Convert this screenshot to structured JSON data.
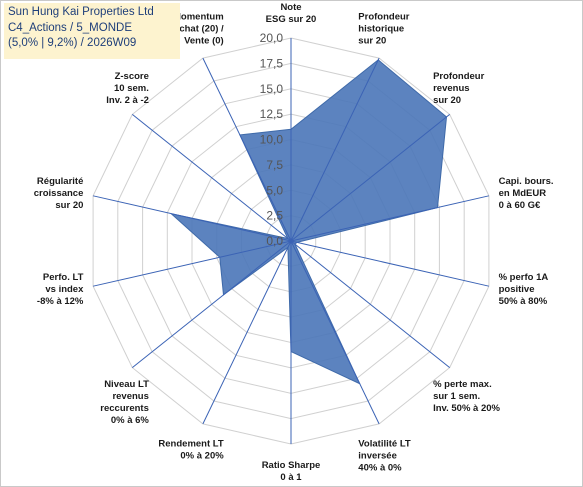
{
  "title_box": {
    "line1": "Sun Hung Kai Properties Ltd",
    "line2": "C4_Actions / 5_MONDE",
    "line3": "(5,0% | 9,2%) / 2026W09"
  },
  "colors": {
    "fill": "#4a76b8",
    "stroke": "#3f6aa9",
    "grid": "#d0d0d0",
    "axis": "#3b63b5"
  },
  "chart_data": {
    "type": "radar",
    "title": "",
    "rmin": 0,
    "rmax": 20,
    "ticks": [
      "0,0",
      "2,5",
      "5,0",
      "7,5",
      "10,0",
      "12,5",
      "15,0",
      "17,5",
      "20,0"
    ],
    "grid": true,
    "axes": [
      {
        "label": [
          "Note",
          "ESG sur 20"
        ],
        "value": 11.0
      },
      {
        "label": [
          "Profondeur",
          "historique",
          "sur 20"
        ],
        "value": 19.8
      },
      {
        "label": [
          "Profondeur",
          "revenus",
          "sur 20"
        ],
        "value": 19.6
      },
      {
        "label": [
          "Capi. bours.",
          "en MdEUR",
          "0 à 60 G€"
        ],
        "value": 14.8
      },
      {
        "label": [
          "% perfo 1A",
          "positive",
          "50% à 80%"
        ],
        "value": 0.6
      },
      {
        "label": [
          "% perte max.",
          "sur 1 sem.",
          "Inv. 50% à 20%"
        ],
        "value": 0.5
      },
      {
        "label": [
          "Volatilité LT",
          "inversée",
          "40% à 0%"
        ],
        "value": 15.6
      },
      {
        "label": [
          "Ratio Sharpe",
          "0 à 1"
        ],
        "value": 10.9
      },
      {
        "label": [
          "Rendement LT",
          "0% à 20%"
        ],
        "value": 0.7
      },
      {
        "label": [
          "Niveau LT",
          "revenus",
          "reccurents",
          "0% à 6%"
        ],
        "value": 8.5
      },
      {
        "label": [
          "Perfo. LT",
          "vs index",
          "-8% à 12%"
        ],
        "value": 7.2
      },
      {
        "label": [
          "Régularité",
          "croissance",
          "sur 20"
        ],
        "value": 12.1
      },
      {
        "label": [
          "Z-score",
          "10 sem.",
          "Inv. 2 à -2"
        ],
        "value": 0.4
      },
      {
        "label": [
          "Momentum",
          "Achat (20) /",
          "Vente (0)"
        ],
        "value": 11.6
      }
    ]
  }
}
